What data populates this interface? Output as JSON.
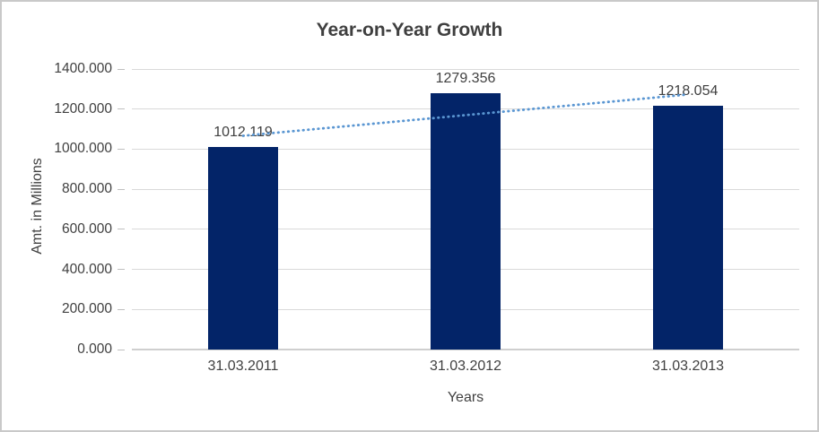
{
  "chart_data": {
    "type": "bar",
    "title": "Year-on-Year Growth",
    "xlabel": "Years",
    "ylabel": "Amt. in Millions",
    "categories": [
      "31.03.2011",
      "31.03.2012",
      "31.03.2013"
    ],
    "values": [
      1012.119,
      1279.356,
      1218.054
    ],
    "data_labels": [
      "1012.119",
      "1279.356",
      "1218.054"
    ],
    "ylim": [
      0,
      1400
    ],
    "ytick_step": 200,
    "ytick_labels": [
      "0.000",
      "200.000",
      "400.000",
      "600.000",
      "800.000",
      "1000.000",
      "1200.000",
      "1400.000"
    ],
    "grid": true,
    "legend": "none",
    "trendline": {
      "type": "linear",
      "style": "dotted"
    },
    "colors": {
      "bar": "#032468",
      "trendline": "#5A96D2",
      "gridline": "#D9D9D9",
      "axis_line": "#CFCFCF",
      "tick": "#BFBFBF",
      "text": "#404040",
      "title_text": "#3F3F3F",
      "chart_border": "#C9C9C9",
      "background": "#FFFFFF"
    }
  }
}
